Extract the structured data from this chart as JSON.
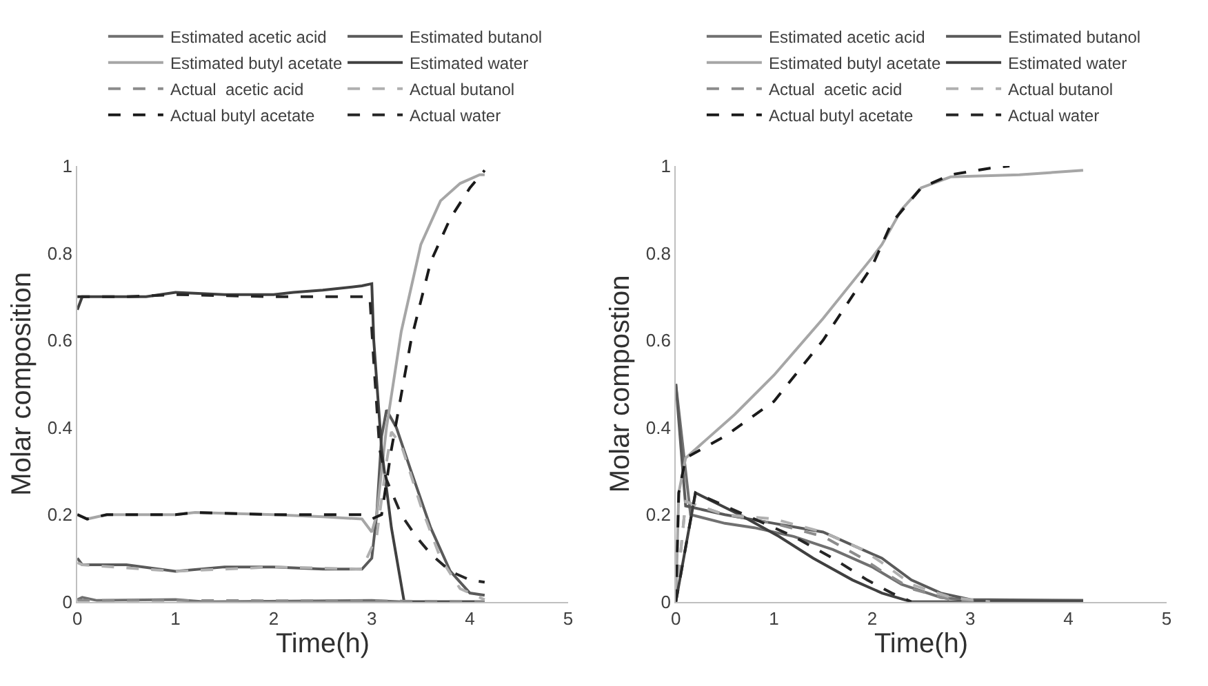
{
  "chart_data": [
    {
      "type": "line",
      "xlabel": "Time(h)",
      "ylabel": "Molar composition",
      "xlim": [
        0,
        5
      ],
      "xticks": [
        0,
        1,
        2,
        3,
        4,
        5
      ],
      "ylim": [
        0,
        1
      ],
      "yticks": [
        0,
        0.2,
        0.4,
        0.6,
        0.8,
        1
      ],
      "legend": "top",
      "grid": false,
      "series": [
        {
          "name": "Estimated acetic acid",
          "color": "#707070",
          "line_style": "solid",
          "x": [
            0,
            0.05,
            0.2,
            1,
            1.3,
            3,
            3.3,
            4.15
          ],
          "values": [
            0.005,
            0.01,
            0.003,
            0.005,
            0,
            0.003,
            0,
            0
          ]
        },
        {
          "name": "Estimated butanol",
          "color": "#5a5a5a",
          "line_style": "solid",
          "x": [
            0,
            0.05,
            0.5,
            1,
            1.5,
            2,
            2.5,
            2.9,
            3.0,
            3.05,
            3.1,
            3.15,
            3.25,
            3.4,
            3.6,
            3.8,
            4.0,
            4.15
          ],
          "values": [
            0.1,
            0.085,
            0.085,
            0.07,
            0.08,
            0.08,
            0.075,
            0.075,
            0.1,
            0.2,
            0.38,
            0.44,
            0.4,
            0.3,
            0.17,
            0.07,
            0.02,
            0.015
          ]
        },
        {
          "name": "Estimated butyl acetate",
          "color": "#a6a6a6",
          "line_style": "solid",
          "x": [
            0,
            0.1,
            0.3,
            1,
            1.2,
            2,
            2.5,
            2.9,
            3.0,
            3.05,
            3.15,
            3.3,
            3.5,
            3.7,
            3.9,
            4.1,
            4.15
          ],
          "values": [
            0.2,
            0.19,
            0.2,
            0.2,
            0.205,
            0.2,
            0.195,
            0.19,
            0.16,
            0.2,
            0.4,
            0.62,
            0.82,
            0.92,
            0.96,
            0.98,
            0.98
          ]
        },
        {
          "name": "Estimated water",
          "color": "#404040",
          "line_style": "solid",
          "x": [
            0,
            0.05,
            0.3,
            0.7,
            1,
            1.5,
            2,
            2.2,
            2.5,
            2.9,
            3.0,
            3.02,
            3.1,
            3.2,
            3.33,
            4.15
          ],
          "values": [
            0.67,
            0.7,
            0.7,
            0.7,
            0.71,
            0.705,
            0.705,
            0.71,
            0.715,
            0.725,
            0.73,
            0.6,
            0.35,
            0.17,
            0,
            0
          ]
        },
        {
          "name": "Actual  acetic acid",
          "color": "#8c8c8c",
          "line_style": "dashed",
          "x": [
            0,
            1,
            3,
            4.15
          ],
          "values": [
            0.003,
            0.003,
            0.002,
            0
          ]
        },
        {
          "name": "Actual butanol",
          "color": "#b0b0b0",
          "line_style": "dashed",
          "x": [
            0,
            0.05,
            1,
            2,
            2.9,
            3.05,
            3.15,
            3.2,
            3.3,
            3.5,
            3.7,
            3.9,
            4.15
          ],
          "values": [
            0.09,
            0.085,
            0.07,
            0.08,
            0.075,
            0.15,
            0.32,
            0.39,
            0.36,
            0.22,
            0.1,
            0.03,
            0.005
          ]
        },
        {
          "name": "Actual butyl acetate",
          "color": "#1a1a1a",
          "line_style": "dashed",
          "x": [
            0,
            0.1,
            0.3,
            1,
            1.2,
            2,
            2.9,
            3.0,
            3.1,
            3.2,
            3.4,
            3.6,
            3.8,
            4.0,
            4.15
          ],
          "values": [
            0.2,
            0.19,
            0.2,
            0.2,
            0.205,
            0.2,
            0.2,
            0.19,
            0.2,
            0.35,
            0.6,
            0.78,
            0.88,
            0.95,
            0.99
          ]
        },
        {
          "name": "Actual water",
          "color": "#262626",
          "line_style": "dashed",
          "x": [
            0,
            0.5,
            1,
            2,
            2.5,
            2.98,
            3.02,
            3.08,
            3.15,
            3.3,
            3.45,
            3.6,
            3.8,
            4.0,
            4.15
          ],
          "values": [
            0.7,
            0.7,
            0.705,
            0.7,
            0.7,
            0.7,
            0.55,
            0.35,
            0.28,
            0.2,
            0.15,
            0.11,
            0.07,
            0.05,
            0.045
          ]
        }
      ]
    },
    {
      "type": "line",
      "xlabel": "Time(h)",
      "ylabel": "Molar compostion",
      "xlim": [
        0,
        5
      ],
      "xticks": [
        0,
        1,
        2,
        3,
        4,
        5
      ],
      "ylim": [
        0,
        1
      ],
      "yticks": [
        0,
        0.2,
        0.4,
        0.6,
        0.8,
        1
      ],
      "legend": "top",
      "grid": false,
      "series": [
        {
          "name": "Estimated acetic acid",
          "color": "#707070",
          "line_style": "solid",
          "x": [
            0,
            0.15,
            0.5,
            0.8,
            1.2,
            1.6,
            2.0,
            2.3,
            2.7,
            3.0,
            4.15
          ],
          "values": [
            0.5,
            0.2,
            0.18,
            0.17,
            0.15,
            0.12,
            0.08,
            0.04,
            0.01,
            0.003,
            0.003
          ]
        },
        {
          "name": "Estimated butanol",
          "color": "#5a5a5a",
          "line_style": "solid",
          "x": [
            0,
            0.1,
            0.5,
            1.0,
            1.5,
            1.9,
            2.1,
            2.4,
            2.7,
            3.0,
            4.15
          ],
          "values": [
            0.5,
            0.22,
            0.2,
            0.18,
            0.16,
            0.12,
            0.1,
            0.05,
            0.02,
            0.005,
            0.003
          ]
        },
        {
          "name": "Estimated butyl acetate",
          "color": "#a6a6a6",
          "line_style": "solid",
          "x": [
            0,
            0.03,
            0.1,
            0.3,
            0.6,
            1,
            1.5,
            2,
            2.1,
            2.3,
            2.5,
            2.8,
            3.5,
            4.15
          ],
          "values": [
            0,
            0.25,
            0.33,
            0.37,
            0.43,
            0.52,
            0.65,
            0.79,
            0.82,
            0.9,
            0.95,
            0.975,
            0.98,
            0.99
          ]
        },
        {
          "name": "Estimated water",
          "color": "#404040",
          "line_style": "solid",
          "x": [
            0,
            0.2,
            0.65,
            1.05,
            1.4,
            1.8,
            2.1,
            2.4,
            4.15
          ],
          "values": [
            0,
            0.25,
            0.2,
            0.15,
            0.1,
            0.05,
            0.02,
            0,
            0
          ]
        },
        {
          "name": "Actual  acetic acid",
          "color": "#8c8c8c",
          "line_style": "dashed",
          "x": [
            0,
            0.1,
            0.5,
            1,
            1.5,
            1.9,
            2.1,
            2.4,
            2.8,
            3.2
          ],
          "values": [
            0,
            0.23,
            0.2,
            0.18,
            0.15,
            0.1,
            0.07,
            0.03,
            0.005,
            0
          ]
        },
        {
          "name": "Actual butanol",
          "color": "#b0b0b0",
          "line_style": "dashed",
          "x": [
            0,
            0.1,
            0.5,
            1,
            1.5,
            1.9,
            2.1,
            2.4,
            2.8,
            3.2
          ],
          "values": [
            0,
            0.23,
            0.2,
            0.19,
            0.16,
            0.12,
            0.09,
            0.04,
            0.01,
            0
          ]
        },
        {
          "name": "Actual butyl acetate",
          "color": "#1a1a1a",
          "line_style": "dashed",
          "x": [
            0,
            0.03,
            0.1,
            0.5,
            1,
            1.5,
            2,
            2.2,
            2.5,
            2.8,
            3.2,
            3.4
          ],
          "values": [
            0,
            0.25,
            0.33,
            0.38,
            0.46,
            0.6,
            0.77,
            0.87,
            0.95,
            0.98,
            0.995,
            1.0
          ]
        },
        {
          "name": "Actual water",
          "color": "#262626",
          "line_style": "dashed",
          "x": [
            0,
            0.2,
            0.7,
            1.2,
            1.6,
            1.95,
            2.2,
            2.4
          ],
          "values": [
            0,
            0.25,
            0.2,
            0.15,
            0.1,
            0.05,
            0.02,
            0
          ]
        }
      ]
    }
  ]
}
